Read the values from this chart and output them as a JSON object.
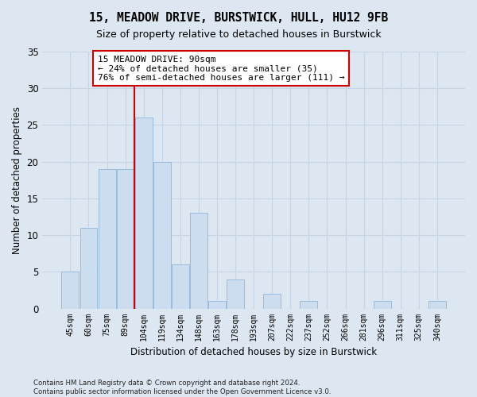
{
  "title": "15, MEADOW DRIVE, BURSTWICK, HULL, HU12 9FB",
  "subtitle": "Size of property relative to detached houses in Burstwick",
  "xlabel": "Distribution of detached houses by size in Burstwick",
  "ylabel": "Number of detached properties",
  "categories": [
    "45sqm",
    "60sqm",
    "75sqm",
    "89sqm",
    "104sqm",
    "119sqm",
    "134sqm",
    "148sqm",
    "163sqm",
    "178sqm",
    "193sqm",
    "207sqm",
    "222sqm",
    "237sqm",
    "252sqm",
    "266sqm",
    "281sqm",
    "296sqm",
    "311sqm",
    "325sqm",
    "340sqm"
  ],
  "values": [
    5,
    11,
    19,
    19,
    26,
    20,
    6,
    13,
    1,
    4,
    0,
    2,
    0,
    1,
    0,
    0,
    0,
    1,
    0,
    0,
    1
  ],
  "bar_color": "#ccddef",
  "bar_edge_color": "#9bbcda",
  "grid_color": "#c8d4e3",
  "background_color": "#dde7f2",
  "red_line_x": 3.5,
  "annotation_text": "15 MEADOW DRIVE: 90sqm\n← 24% of detached houses are smaller (35)\n76% of semi-detached houses are larger (111) →",
  "annotation_box_color": "#ffffff",
  "annotation_box_edge_color": "#cc0000",
  "ylim": [
    0,
    35
  ],
  "yticks": [
    0,
    5,
    10,
    15,
    20,
    25,
    30,
    35
  ],
  "footer_line1": "Contains HM Land Registry data © Crown copyright and database right 2024.",
  "footer_line2": "Contains public sector information licensed under the Open Government Licence v3.0."
}
